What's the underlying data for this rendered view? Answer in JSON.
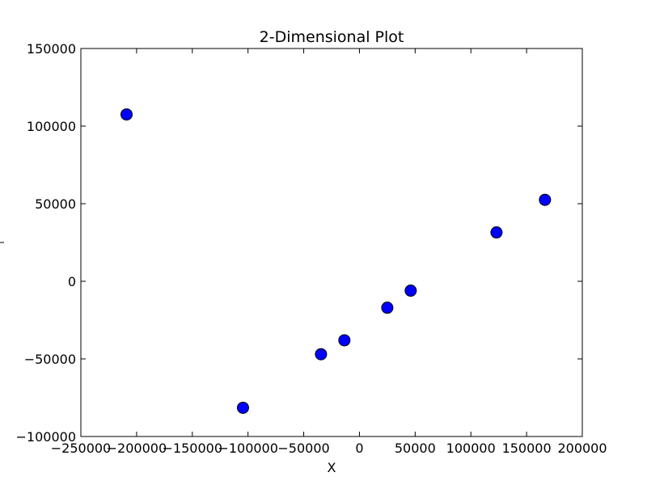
{
  "chart_data": {
    "type": "scatter",
    "title": "2-Dimensional Plot",
    "xlabel": "X",
    "ylabel": "",
    "xlim": [
      -250000,
      200000
    ],
    "ylim": [
      -100000,
      150000
    ],
    "xticks": [
      -250000,
      -200000,
      -150000,
      -100000,
      -50000,
      0,
      50000,
      100000,
      150000,
      200000
    ],
    "yticks": [
      -100000,
      -50000,
      0,
      50000,
      100000,
      150000
    ],
    "xtick_labels": [
      "−250000",
      "−200000",
      "−150000",
      "−100000",
      "−50000",
      "0",
      "50000",
      "100000",
      "150000",
      "200000"
    ],
    "ytick_labels": [
      "−100000",
      "−50000",
      "0",
      "50000",
      "100000",
      "150000"
    ],
    "grid": false,
    "marker_color": "#0000ff",
    "marker_edge_color": "#000000",
    "points": [
      {
        "x": -209000,
        "y": 107500
      },
      {
        "x": -104500,
        "y": -81500
      },
      {
        "x": -34500,
        "y": -47000
      },
      {
        "x": -13500,
        "y": -38000
      },
      {
        "x": 25000,
        "y": -17000
      },
      {
        "x": 46000,
        "y": -6000
      },
      {
        "x": 123000,
        "y": 31500
      },
      {
        "x": 166500,
        "y": 52500
      }
    ]
  }
}
